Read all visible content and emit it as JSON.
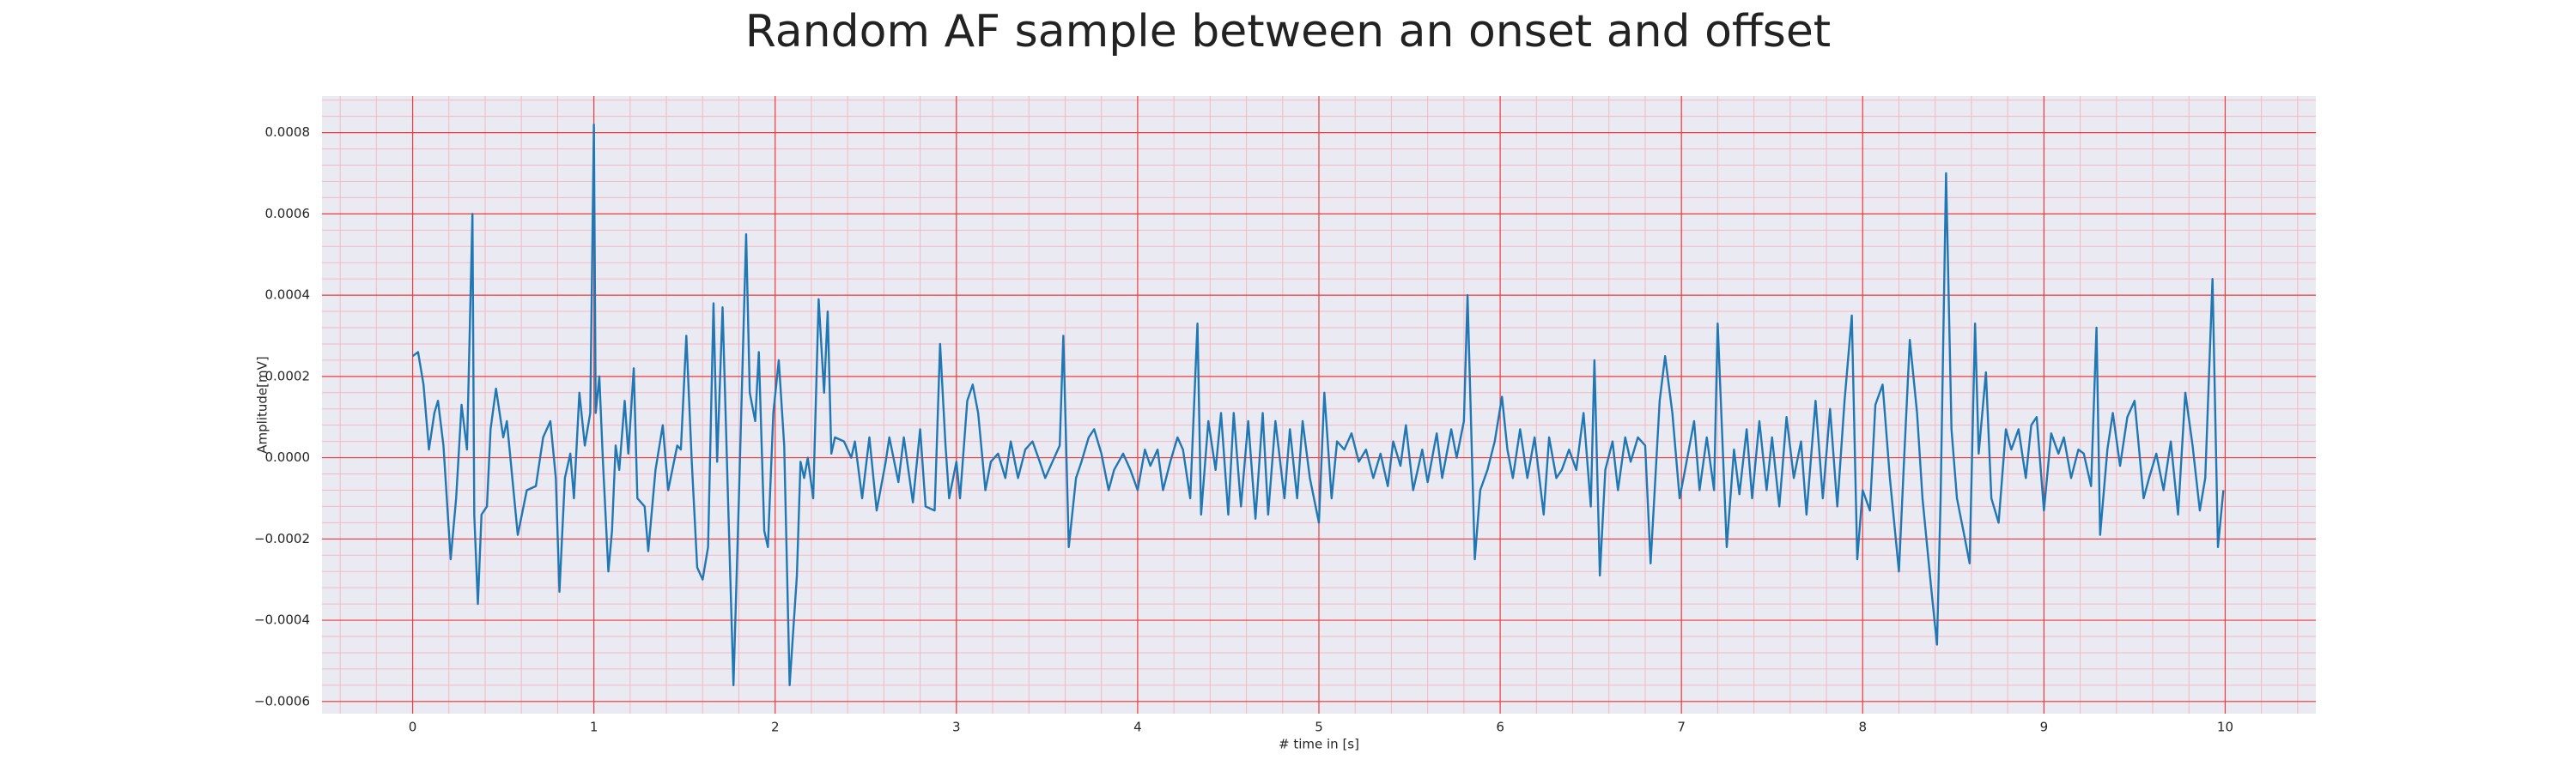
{
  "chart_data": {
    "type": "line",
    "title": "Random AF sample between an onset and offset",
    "xlabel": "# time in [s]",
    "ylabel": "Amplitude[mV]",
    "color": "#1f77b4",
    "grid": true,
    "minor_grid": 5,
    "xlim": [
      -0.5,
      10.5
    ],
    "ylim": [
      -0.00063,
      0.00089
    ],
    "xticks": [
      0,
      1,
      2,
      3,
      4,
      5,
      6,
      7,
      8,
      9,
      10
    ],
    "yticks": [
      {
        "value": -0.0006,
        "label": "−0.0006"
      },
      {
        "value": -0.0004,
        "label": "−0.0004"
      },
      {
        "value": -0.0002,
        "label": "−0.0002"
      },
      {
        "value": 0,
        "label": "0.0000"
      },
      0.0002,
      0.0004,
      0.0006,
      0.0008
    ],
    "x": [
      0.0,
      0.03,
      0.06,
      0.09,
      0.12,
      0.14,
      0.17,
      0.21,
      0.24,
      0.27,
      0.3,
      0.33,
      0.34,
      0.36,
      0.38,
      0.41,
      0.43,
      0.46,
      0.5,
      0.52,
      0.58,
      0.63,
      0.68,
      0.72,
      0.76,
      0.79,
      0.81,
      0.84,
      0.87,
      0.89,
      0.92,
      0.95,
      0.98,
      1.0,
      1.01,
      1.03,
      1.05,
      1.08,
      1.1,
      1.12,
      1.14,
      1.17,
      1.19,
      1.22,
      1.24,
      1.28,
      1.3,
      1.34,
      1.38,
      1.41,
      1.46,
      1.48,
      1.51,
      1.54,
      1.57,
      1.6,
      1.63,
      1.66,
      1.68,
      1.71,
      1.74,
      1.77,
      1.8,
      1.84,
      1.86,
      1.89,
      1.91,
      1.94,
      1.96,
      1.99,
      2.02,
      2.05,
      2.08,
      2.12,
      2.14,
      2.16,
      2.18,
      2.21,
      2.24,
      2.27,
      2.29,
      2.31,
      2.33,
      2.38,
      2.42,
      2.44,
      2.48,
      2.52,
      2.56,
      2.61,
      2.63,
      2.68,
      2.71,
      2.76,
      2.8,
      2.83,
      2.88,
      2.91,
      2.94,
      2.96,
      3.0,
      3.02,
      3.06,
      3.09,
      3.12,
      3.16,
      3.19,
      3.23,
      3.27,
      3.3,
      3.34,
      3.38,
      3.42,
      3.46,
      3.49,
      3.53,
      3.57,
      3.59,
      3.62,
      3.66,
      3.69,
      3.73,
      3.76,
      3.8,
      3.84,
      3.87,
      3.92,
      3.96,
      4.0,
      4.04,
      4.07,
      4.11,
      4.14,
      4.18,
      4.22,
      4.25,
      4.29,
      4.33,
      4.35,
      4.39,
      4.43,
      4.46,
      4.5,
      4.53,
      4.57,
      4.61,
      4.65,
      4.69,
      4.72,
      4.76,
      4.81,
      4.84,
      4.88,
      4.91,
      4.95,
      5.0,
      5.03,
      5.07,
      5.1,
      5.14,
      5.18,
      5.22,
      5.26,
      5.3,
      5.34,
      5.38,
      5.41,
      5.45,
      5.48,
      5.52,
      5.57,
      5.6,
      5.65,
      5.68,
      5.73,
      5.76,
      5.8,
      5.82,
      5.86,
      5.89,
      5.93,
      5.97,
      6.01,
      6.04,
      6.07,
      6.11,
      6.15,
      6.19,
      6.24,
      6.27,
      6.31,
      6.34,
      6.38,
      6.42,
      6.46,
      6.5,
      6.52,
      6.55,
      6.58,
      6.62,
      6.65,
      6.69,
      6.72,
      6.76,
      6.8,
      6.83,
      6.88,
      6.91,
      6.95,
      6.99,
      7.02,
      7.07,
      7.1,
      7.14,
      7.18,
      7.2,
      7.25,
      7.29,
      7.32,
      7.36,
      7.39,
      7.43,
      7.47,
      7.5,
      7.54,
      7.58,
      7.62,
      7.66,
      7.69,
      7.74,
      7.78,
      7.82,
      7.86,
      7.9,
      7.94,
      7.97,
      8.0,
      8.04,
      8.07,
      8.11,
      8.15,
      8.2,
      8.23,
      8.26,
      8.3,
      8.33,
      8.38,
      8.41,
      8.43,
      8.46,
      8.49,
      8.52,
      8.56,
      8.59,
      8.62,
      8.64,
      8.68,
      8.71,
      8.75,
      8.79,
      8.82,
      8.86,
      8.9,
      8.93,
      8.96,
      9.0,
      9.04,
      9.08,
      9.11,
      9.15,
      9.19,
      9.22,
      9.26,
      9.29,
      9.31,
      9.35,
      9.38,
      9.42,
      9.46,
      9.5,
      9.55,
      9.58,
      9.62,
      9.66,
      9.7,
      9.74,
      9.78,
      9.82,
      9.86,
      9.89,
      9.93,
      9.96,
      9.99
    ],
    "values": [
      0.00025,
      0.00026,
      0.00018,
      2e-05,
      0.00011,
      0.00014,
      3e-05,
      -0.00025,
      -0.0001,
      0.00013,
      2e-05,
      0.0006,
      -0.00014,
      -0.00036,
      -0.00014,
      -0.00012,
      7e-05,
      0.00017,
      5e-05,
      9e-05,
      -0.00019,
      -8e-05,
      -7e-05,
      5e-05,
      9e-05,
      -5e-05,
      -0.00033,
      -5e-05,
      1e-05,
      -0.0001,
      0.00016,
      3e-05,
      0.00011,
      0.00082,
      0.00011,
      0.0002,
      -1e-05,
      -0.00028,
      -0.00018,
      3e-05,
      -3e-05,
      0.00014,
      1e-05,
      0.00022,
      -0.0001,
      -0.00012,
      -0.00023,
      -3e-05,
      8e-05,
      -8e-05,
      3e-05,
      2e-05,
      0.0003,
      -1e-05,
      -0.00027,
      -0.0003,
      -0.00022,
      0.00038,
      -1e-05,
      0.00037,
      -0.0001,
      -0.00056,
      -0.0001,
      0.00055,
      0.00016,
      9e-05,
      0.00026,
      -0.00018,
      -0.00022,
      0.00011,
      0.00024,
      3e-05,
      -0.00056,
      -0.00029,
      -1e-05,
      -5e-05,
      0,
      -0.0001,
      0.00039,
      0.00016,
      0.00036,
      1e-05,
      5e-05,
      4e-05,
      0,
      4e-05,
      -0.0001,
      5e-05,
      -0.00013,
      -1e-05,
      5e-05,
      -6e-05,
      5e-05,
      -0.00011,
      7e-05,
      -0.00012,
      -0.00013,
      0.00028,
      3e-05,
      -0.0001,
      -1e-05,
      -0.0001,
      0.00014,
      0.00018,
      0.00011,
      -8e-05,
      -1e-05,
      1e-05,
      -5e-05,
      4e-05,
      -5e-05,
      2e-05,
      4e-05,
      -1e-05,
      -5e-05,
      -1e-05,
      3e-05,
      0.0003,
      -0.00022,
      -5e-05,
      -1e-05,
      5e-05,
      7e-05,
      1e-05,
      -8e-05,
      -3e-05,
      1e-05,
      -3e-05,
      -8e-05,
      2e-05,
      -2e-05,
      2e-05,
      -8e-05,
      -1e-05,
      5e-05,
      2e-05,
      -0.0001,
      0.00033,
      -0.00014,
      9e-05,
      -3e-05,
      0.00011,
      -0.00014,
      0.00011,
      -0.00012,
      9e-05,
      -0.00015,
      0.00011,
      -0.00014,
      9e-05,
      -0.0001,
      7e-05,
      -0.0001,
      9e-05,
      -5e-05,
      -0.00016,
      0.00016,
      -0.0001,
      4e-05,
      2e-05,
      6e-05,
      -1e-05,
      2e-05,
      -5e-05,
      1e-05,
      -7e-05,
      4e-05,
      -2e-05,
      8e-05,
      -8e-05,
      2e-05,
      -6e-05,
      6e-05,
      -5e-05,
      7e-05,
      0,
      9e-05,
      0.0004,
      -0.00025,
      -8e-05,
      -3e-05,
      4e-05,
      0.00015,
      2e-05,
      -5e-05,
      7e-05,
      -5e-05,
      5e-05,
      -0.00014,
      5e-05,
      -5e-05,
      -3e-05,
      2e-05,
      -3e-05,
      0.00011,
      -0.00012,
      0.00024,
      -0.00029,
      -3e-05,
      4e-05,
      -8e-05,
      5e-05,
      -1e-05,
      5e-05,
      3e-05,
      -0.00026,
      0.00014,
      0.00025,
      0.00011,
      -0.0001,
      -3e-05,
      9e-05,
      -8e-05,
      5e-05,
      -8e-05,
      0.00033,
      -0.00022,
      2e-05,
      -9e-05,
      7e-05,
      -0.0001,
      9e-05,
      -8e-05,
      5e-05,
      -0.00012,
      0.0001,
      -5e-05,
      4e-05,
      -0.00014,
      0.00014,
      -0.0001,
      0.00012,
      -0.00012,
      0.00014,
      0.00035,
      -0.00025,
      -8e-05,
      -0.00013,
      0.00013,
      0.00018,
      -5e-05,
      -0.00028,
      1e-05,
      0.00029,
      0.00011,
      -0.0001,
      -0.00033,
      -0.00046,
      -0.0001,
      0.0007,
      7e-05,
      -0.0001,
      -0.00019,
      -0.00026,
      0.00033,
      1e-05,
      0.00021,
      -0.0001,
      -0.00016,
      7e-05,
      2e-05,
      7e-05,
      -5e-05,
      8e-05,
      0.0001,
      -0.00013,
      6e-05,
      1e-05,
      5e-05,
      -5e-05,
      2e-05,
      1e-05,
      -7e-05,
      0.00032,
      -0.00019,
      2e-05,
      0.00011,
      -2e-05,
      0.0001,
      0.00014,
      -0.0001,
      -5e-05,
      1e-05,
      -8e-05,
      4e-05,
      -0.00014,
      0.00016,
      3e-05,
      -0.00013,
      -5e-05,
      0.00044,
      -0.00022,
      -8e-05
    ]
  }
}
